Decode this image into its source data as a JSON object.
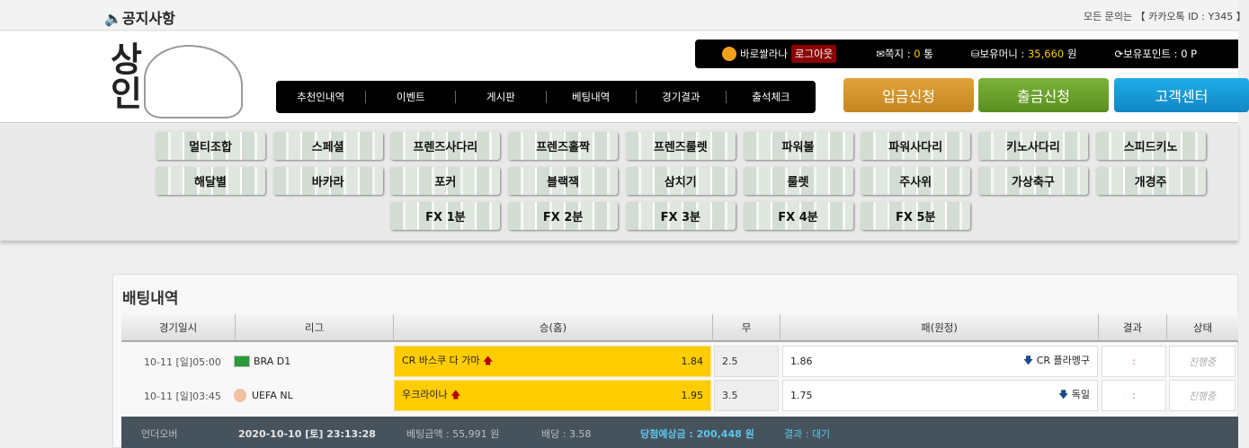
{
  "topbar": {
    "notice": "공지사항",
    "contact": "모든 문의는 【 카카오톡 ID : Y345 】"
  },
  "logo": {
    "text": "상인"
  },
  "nav": [
    "추천인내역",
    "이벤트",
    "게시판",
    "베팅내역",
    "경기결과",
    "출석체크"
  ],
  "user": {
    "name": "바로쌀라나",
    "logout": "로그아웃",
    "msg_label": "쪽지 : ",
    "msg_count": "0",
    "msg_unit": " 통",
    "money_label": "보유머니 : ",
    "money": "35,660",
    "money_unit": " 원",
    "point_label": "보유포인트 : 0 P"
  },
  "buttons": {
    "deposit": "입금신청",
    "withdraw": "출금신청",
    "support": "고객센터"
  },
  "games": [
    [
      "멀티조합",
      "스페셜",
      "프렌즈사다리",
      "프렌즈홀짝",
      "프렌즈룰렛",
      "파워볼",
      "파워사다리",
      "키노사다리",
      "스피드키노"
    ],
    [
      "해달별",
      "바카라",
      "포커",
      "블랙잭",
      "삼치기",
      "룰렛",
      "주사위",
      "가상축구",
      "개경주"
    ],
    [
      "FX 1분",
      "FX 2분",
      "FX 3분",
      "FX 4분",
      "FX 5분"
    ]
  ],
  "section": {
    "title": "배팅내역"
  },
  "table": {
    "headers": [
      "경기일시",
      "리그",
      "승(홈)",
      "무",
      "패(원정)",
      "결과",
      "상태"
    ],
    "rows": [
      {
        "time": "10-11 [일]05:00",
        "league": "BRA D1",
        "home": "CR 바스쿠 다 가마",
        "home_odds": "1.84",
        "draw": "2.5",
        "away_odds": "1.86",
        "away": "CR 플라멩구",
        "result": ":",
        "status": "진행중"
      },
      {
        "time": "10-11 [일]03:45",
        "league": "UEFA NL",
        "home": "우크라이나",
        "home_odds": "1.95",
        "draw": "3.5",
        "away_odds": "1.75",
        "away": "독일",
        "result": ":",
        "status": "진행중"
      }
    ]
  },
  "summary": {
    "type": "언더오버",
    "date": "2020-10-10 [토] 23:13:28",
    "amount": "베팅금액 : 55,991 원",
    "odds": "배당 : 3.58",
    "win": "당첨예상금 : 200,448 원",
    "result": "결과 : 대기"
  },
  "colors": {
    "home_highlight": "#ffcc00",
    "deposit": "#d39a2c",
    "withdraw": "#6aa12a",
    "support": "#1a9ad8",
    "summary_bg": "#46535d"
  }
}
